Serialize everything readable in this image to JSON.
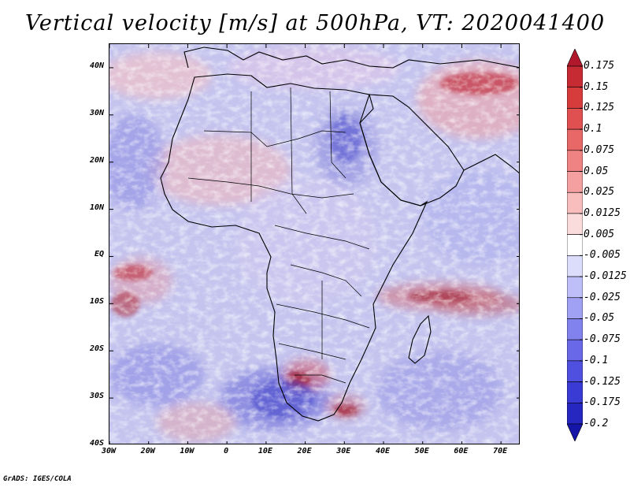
{
  "title": "Vertical velocity [m/s] at 500hPa, VT: 2020041400",
  "credit": "GrADS: IGES/COLA",
  "map": {
    "region": "Africa and surrounding oceans",
    "lat_labels": [
      "40N",
      "30N",
      "20N",
      "10N",
      "EQ",
      "10S",
      "20S",
      "30S",
      "40S"
    ],
    "lat_values": [
      40,
      30,
      20,
      10,
      0,
      -10,
      -20,
      -30,
      -40
    ],
    "lon_labels": [
      "30W",
      "20W",
      "10W",
      "0",
      "10E",
      "20E",
      "30E",
      "40E",
      "50E",
      "60E",
      "70E"
    ],
    "lon_values": [
      -30,
      -20,
      -10,
      0,
      10,
      20,
      30,
      40,
      50,
      60,
      70
    ],
    "lon_range": [
      -30,
      75
    ],
    "lat_range": [
      -40,
      45
    ]
  },
  "colorbar": {
    "labels": [
      "0.175",
      "0.15",
      "0.125",
      "0.1",
      "0.075",
      "0.05",
      "0.025",
      "0.0125",
      "0.005",
      "-0.005",
      "-0.0125",
      "-0.025",
      "-0.05",
      "-0.075",
      "-0.1",
      "-0.125",
      "-0.175",
      "-0.2"
    ],
    "colors": [
      "#b2182b",
      "#c62a32",
      "#d63c3c",
      "#e05050",
      "#e86868",
      "#ef8282",
      "#f4a0a0",
      "#f8bebe",
      "#fbdcdc",
      "#ffffff",
      "#dcdcfb",
      "#bebef8",
      "#a0a0f4",
      "#8282ef",
      "#6868e8",
      "#5050e0",
      "#3a3ad4",
      "#2626c0",
      "#1515a8"
    ]
  },
  "colors": {
    "ocean_base": "#c8c8f0",
    "coast": "#000000"
  }
}
